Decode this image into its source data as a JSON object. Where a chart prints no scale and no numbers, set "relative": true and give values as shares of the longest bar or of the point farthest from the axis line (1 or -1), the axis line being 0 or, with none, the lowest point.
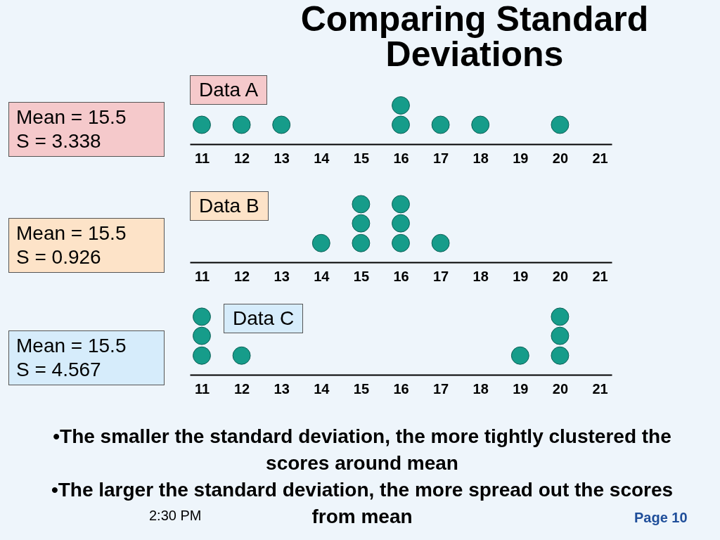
{
  "chart_data": [
    {
      "type": "scatter",
      "title": "Comparing Standard Deviations",
      "subtitle": "Data A",
      "annotations": [
        "Mean = 15.5",
        "S = 3.338"
      ],
      "x": [
        11,
        12,
        13,
        16,
        16,
        17,
        18,
        20
      ],
      "relative": true,
      "marker": "circle",
      "xlim": [
        10.7,
        21.3
      ],
      "xticks": [
        11,
        12,
        13,
        14,
        15,
        16,
        17,
        18,
        19,
        20,
        21
      ],
      "series": [
        {
          "color": "#169c8a",
          "values": [
            0.5,
            0.5,
            0.5,
            0.5,
            1,
            0.5,
            0.5,
            0.5
          ]
        }
      ]
    },
    {
      "type": "scatter",
      "subtitle": "Data B",
      "annotations": [
        "Mean = 15.5",
        "S = 0.926"
      ],
      "x": [
        14,
        15,
        15,
        15,
        16,
        16,
        16,
        17
      ],
      "relative": true,
      "marker": "circle",
      "xlim": [
        10.7,
        21.3
      ],
      "xticks": [
        11,
        12,
        13,
        14,
        15,
        16,
        17,
        18,
        19,
        20,
        21
      ],
      "series": [
        {
          "color": "#169c8a",
          "values": [
            0.33,
            0.33,
            0.67,
            1,
            0.33,
            0.67,
            1,
            0.33
          ]
        }
      ]
    },
    {
      "type": "scatter",
      "subtitle": "Data C",
      "annotations": [
        "Mean = 15.5",
        "S = 4.567",
        "•The smaller the standard deviation, the more tightly clustered the scores around mean",
        "•The larger the standard deviation, the more spread out the scores from mean",
        "2:30 PM",
        "Page 10"
      ],
      "x": [
        11,
        11,
        11,
        12,
        19,
        20,
        20,
        20
      ],
      "relative": true,
      "marker": "circle",
      "xlim": [
        10.7,
        21.3
      ],
      "xticks": [
        11,
        12,
        13,
        14,
        15,
        16,
        17,
        18,
        19,
        20,
        21
      ],
      "series": [
        {
          "color": "#169c8a",
          "values": [
            0.33,
            0.67,
            1,
            0.33,
            0.33,
            0.33,
            0.67,
            1
          ]
        }
      ]
    }
  ]
}
